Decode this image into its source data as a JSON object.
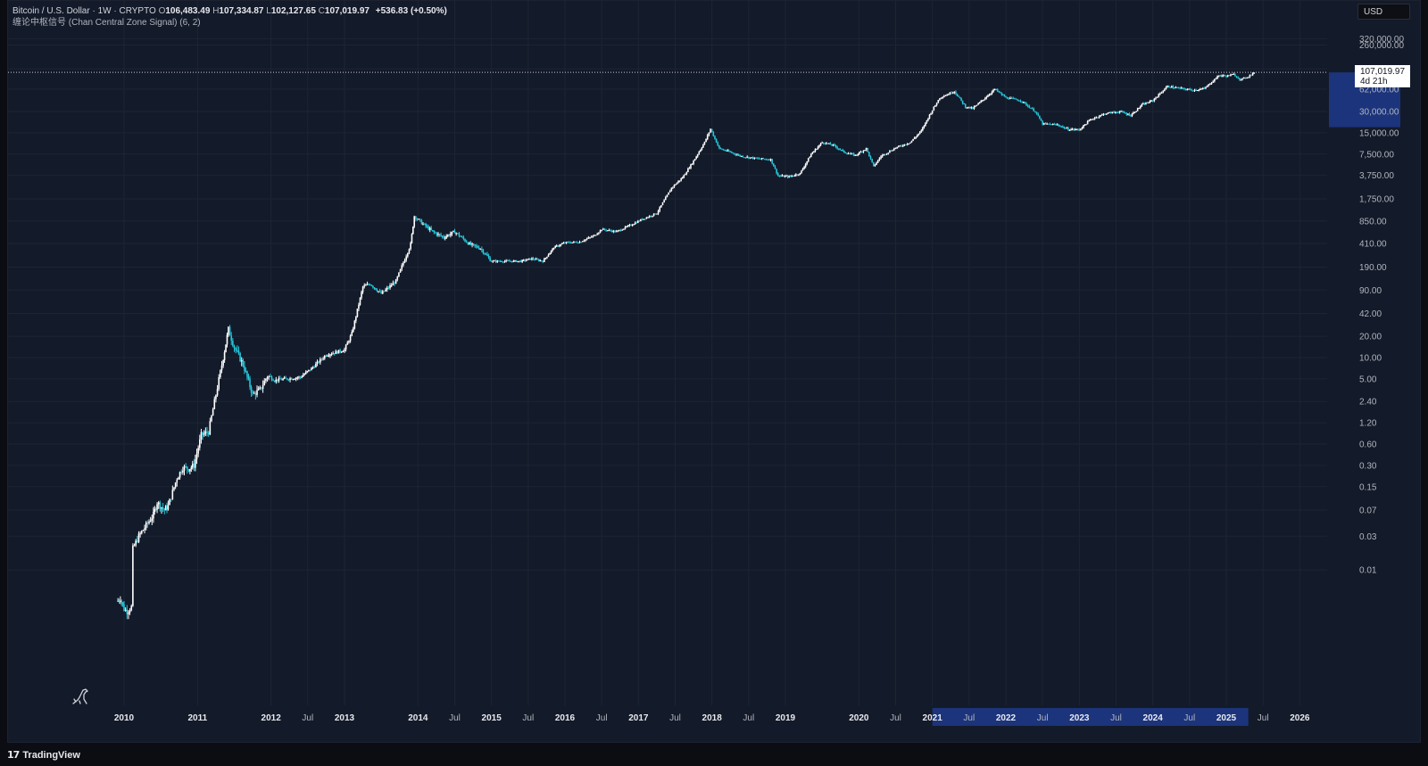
{
  "header": {
    "symbol": "Bitcoin / U.S. Dollar · 1W · CRYPTO",
    "open_label": "O",
    "open": "106,483.49",
    "high_label": "H",
    "high": "107,334.87",
    "low_label": "L",
    "low": "102,127.65",
    "close_label": "C",
    "close": "107,019.97",
    "change": "+536.83 (+0.50%)",
    "indicator": "缠论中枢信号 (Chan Central Zone Signal) (6, 2)"
  },
  "currency_button": "USD",
  "price_tag": {
    "value": "107,019.97",
    "countdown": "4d 21h"
  },
  "footer": {
    "brand": "TradingView",
    "logo": "17"
  },
  "colors": {
    "background": "#131a29",
    "candle": "#ffffff",
    "signal": "#26c6da",
    "highlight": "#1e3a8a",
    "grid": "#1d2535"
  },
  "icons": {
    "bottom_left": "dinosaur-icon",
    "brand": "tradingview-logo-icon"
  },
  "chart_data": {
    "type": "candlestick",
    "scale": "log",
    "y_ticks": [
      "320,000.00",
      "260,000.00",
      "120,000.00",
      "62,000.00",
      "30,000.00",
      "15,000.00",
      "7,500.00",
      "3,750.00",
      "1,750.00",
      "850.00",
      "410.00",
      "190.00",
      "90.00",
      "42.00",
      "20.00",
      "10.00",
      "5.00",
      "2.40",
      "1.20",
      "0.60",
      "0.30",
      "0.15",
      "0.07",
      "0.03",
      "0.01"
    ],
    "x_ticks": [
      {
        "label": "2010",
        "date": "2010.0"
      },
      {
        "label": "2011",
        "date": "2011.0"
      },
      {
        "label": "2012",
        "date": "2012.0"
      },
      {
        "label": "Jul",
        "date": "2012.5"
      },
      {
        "label": "2013",
        "date": "2013.0"
      },
      {
        "label": "2014",
        "date": "2014.0"
      },
      {
        "label": "Jul",
        "date": "2014.5"
      },
      {
        "label": "2015",
        "date": "2015.0"
      },
      {
        "label": "Jul",
        "date": "2015.5"
      },
      {
        "label": "2016",
        "date": "2016.0"
      },
      {
        "label": "Jul",
        "date": "2016.5"
      },
      {
        "label": "2017",
        "date": "2017.0"
      },
      {
        "label": "Jul",
        "date": "2017.5"
      },
      {
        "label": "2018",
        "date": "2018.0"
      },
      {
        "label": "Jul",
        "date": "2018.5"
      },
      {
        "label": "2019",
        "date": "2019.0"
      },
      {
        "label": "2020",
        "date": "2020.0"
      },
      {
        "label": "Jul",
        "date": "2020.5"
      },
      {
        "label": "2021",
        "date": "2021.0"
      },
      {
        "label": "Jul",
        "date": "2021.5"
      },
      {
        "label": "2022",
        "date": "2022.0"
      },
      {
        "label": "Jul",
        "date": "2022.5"
      },
      {
        "label": "2023",
        "date": "2023.0"
      },
      {
        "label": "Jul",
        "date": "2023.5"
      },
      {
        "label": "2024",
        "date": "2024.0"
      },
      {
        "label": "Jul",
        "date": "2024.5"
      },
      {
        "label": "2025",
        "date": "2025.0"
      },
      {
        "label": "Jul",
        "date": "2025.5"
      },
      {
        "label": "2026",
        "date": "2026.0"
      }
    ],
    "highlight_range": [
      "2021.0",
      "2025.3"
    ],
    "last_price": 107019.97,
    "series": [
      {
        "points": [
          [
            "2009.9",
            0.0035
          ],
          [
            "2009.95",
            0.004
          ],
          [
            "2010.0",
            0.0028
          ],
          [
            "2010.04",
            0.0026
          ],
          [
            "2010.1",
            0.003
          ],
          [
            "2010.12",
            0.02
          ],
          [
            "2010.2",
            0.03
          ],
          [
            "2010.4",
            0.06
          ],
          [
            "2010.45",
            0.09
          ],
          [
            "2010.55",
            0.07
          ],
          [
            "2010.6",
            0.08
          ],
          [
            "2010.72",
            0.2
          ],
          [
            "2010.8",
            0.28
          ],
          [
            "2010.88",
            0.27
          ],
          [
            "2010.95",
            0.3
          ],
          [
            "2011.05",
            0.8
          ],
          [
            "2011.15",
            0.9
          ],
          [
            "2011.25",
            3
          ],
          [
            "2011.35",
            10
          ],
          [
            "2011.42",
            25
          ],
          [
            "2011.5",
            14
          ],
          [
            "2011.62",
            8
          ],
          [
            "2011.75",
            3
          ],
          [
            "2011.85",
            3.5
          ],
          [
            "2011.95",
            5.5
          ],
          [
            "2012.05",
            4.8
          ],
          [
            "2012.2",
            5
          ],
          [
            "2012.4",
            5.3
          ],
          [
            "2012.55",
            7
          ],
          [
            "2012.75",
            11
          ],
          [
            "2012.9",
            12
          ],
          [
            "2013.0",
            13
          ],
          [
            "2013.1",
            22
          ],
          [
            "2013.25",
            100
          ],
          [
            "2013.35",
            110
          ],
          [
            "2013.5",
            80
          ],
          [
            "2013.7",
            120
          ],
          [
            "2013.9",
            400
          ],
          [
            "2013.95",
            1000
          ],
          [
            "2014.05",
            800
          ],
          [
            "2014.2",
            600
          ],
          [
            "2014.35",
            500
          ],
          [
            "2014.5",
            600
          ],
          [
            "2014.7",
            400
          ],
          [
            "2014.85",
            350
          ],
          [
            "2015.0",
            230
          ],
          [
            "2015.2",
            230
          ],
          [
            "2015.4",
            230
          ],
          [
            "2015.55",
            250
          ],
          [
            "2015.7",
            230
          ],
          [
            "2015.85",
            360
          ],
          [
            "2016.0",
            420
          ],
          [
            "2016.2",
            430
          ],
          [
            "2016.4",
            530
          ],
          [
            "2016.5",
            650
          ],
          [
            "2016.7",
            600
          ],
          [
            "2016.9",
            750
          ],
          [
            "2017.05",
            900
          ],
          [
            "2017.25",
            1100
          ],
          [
            "2017.45",
            2500
          ],
          [
            "2017.6",
            3500
          ],
          [
            "2017.75",
            6000
          ],
          [
            "2017.9",
            11000
          ],
          [
            "2017.98",
            17000
          ],
          [
            "2018.1",
            9000
          ],
          [
            "2018.25",
            8000
          ],
          [
            "2018.4",
            7000
          ],
          [
            "2018.6",
            6500
          ],
          [
            "2018.8",
            6300
          ],
          [
            "2018.9",
            3700
          ],
          [
            "2019.05",
            3600
          ],
          [
            "2019.2",
            4000
          ],
          [
            "2019.35",
            7500
          ],
          [
            "2019.5",
            11000
          ],
          [
            "2019.65",
            10000
          ],
          [
            "2019.8",
            8000
          ],
          [
            "2019.95",
            7200
          ],
          [
            "2020.1",
            9000
          ],
          [
            "2020.2",
            5000
          ],
          [
            "2020.3",
            7000
          ],
          [
            "2020.5",
            9200
          ],
          [
            "2020.7",
            11000
          ],
          [
            "2020.85",
            16000
          ],
          [
            "2020.98",
            29000
          ],
          [
            "2021.1",
            47000
          ],
          [
            "2021.3",
            58000
          ],
          [
            "2021.45",
            35000
          ],
          [
            "2021.55",
            33000
          ],
          [
            "2021.7",
            45000
          ],
          [
            "2021.85",
            62000
          ],
          [
            "2022.0",
            47000
          ],
          [
            "2022.2",
            43000
          ],
          [
            "2022.4",
            30000
          ],
          [
            "2022.5",
            20000
          ],
          [
            "2022.7",
            19500
          ],
          [
            "2022.85",
            16800
          ],
          [
            "2023.0",
            16600
          ],
          [
            "2023.15",
            23000
          ],
          [
            "2023.35",
            28000
          ],
          [
            "2023.55",
            30000
          ],
          [
            "2023.7",
            26500
          ],
          [
            "2023.85",
            37000
          ],
          [
            "2024.0",
            43000
          ],
          [
            "2024.2",
            68000
          ],
          [
            "2024.35",
            64000
          ],
          [
            "2024.55",
            60000
          ],
          [
            "2024.7",
            63000
          ],
          [
            "2024.9",
            97000
          ],
          [
            "2025.0",
            95000
          ],
          [
            "2025.1",
            100000
          ],
          [
            "2025.2",
            84000
          ],
          [
            "2025.3",
            94000
          ],
          [
            "2025.38",
            107019.97
          ]
        ]
      }
    ]
  }
}
